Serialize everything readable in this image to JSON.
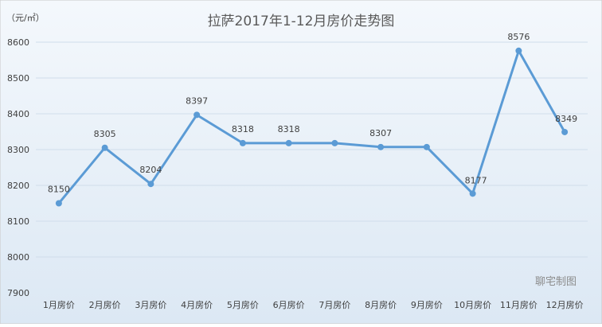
{
  "chart_data": {
    "type": "line",
    "title": "拉萨2017年1-12月房价走势图",
    "unit_label": "（元/㎡）",
    "watermark": "聊宅制图",
    "categories": [
      "1月房价",
      "2月房价",
      "3月房价",
      "4月房价",
      "5月房价",
      "6月房价",
      "7月房价",
      "8月房价",
      "9月房价",
      "10月房价",
      "11月房价",
      "12月房价"
    ],
    "series": [
      {
        "values": [
          8150,
          8305,
          8204,
          8397,
          8318,
          8318,
          8318,
          8307,
          8307,
          8177,
          8576,
          8349
        ]
      }
    ],
    "data_labels": [
      "8150",
      "8305",
      "8204",
      "8397",
      "8318",
      "8318",
      "",
      "8307",
      "",
      "8177",
      "8576",
      "8349"
    ],
    "ylim": [
      7900,
      8600
    ],
    "yticks": [
      "7900",
      "8000",
      "8100",
      "8200",
      "8300",
      "8400",
      "8500",
      "8600"
    ],
    "grid": true,
    "colors": {
      "line": "#5B9BD5",
      "grid": "#D0DDEB",
      "bg_top": "#F4F8FC",
      "bg_bottom": "#DCE8F4"
    }
  }
}
